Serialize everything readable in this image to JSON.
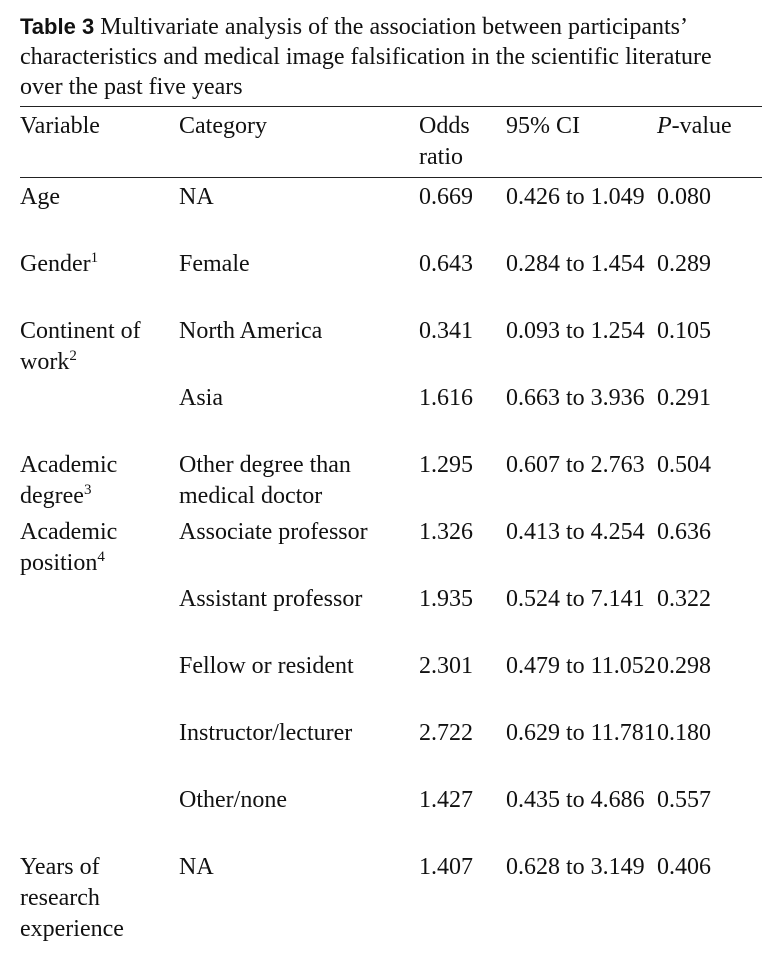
{
  "caption": {
    "label": "Table 3",
    "text": "Multivariate analysis of the association between participants’ characteristics and medical image falsification in the scientific literature over the past five years"
  },
  "table": {
    "header": [
      "Variable",
      "Category",
      "Odds ratio",
      "95% CI",
      {
        "italic": "P",
        "text": "-value"
      }
    ],
    "rows": [
      [
        {
          "text": "Age"
        },
        "NA",
        "0.669",
        "0.426 to 1.049",
        "0.080"
      ],
      [
        {
          "text": "Gender",
          "sup": "1"
        },
        "Female",
        "0.643",
        "0.284 to 1.454",
        "0.289"
      ],
      [
        {
          "text": "Continent of work",
          "sup": "2"
        },
        "North America",
        "0.341",
        "0.093 to 1.254",
        "0.105"
      ],
      [
        {
          "text": ""
        },
        "Asia",
        "1.616",
        "0.663 to 3.936",
        "0.291"
      ],
      [
        {
          "text": "Academic degree",
          "sup": "3"
        },
        "Other degree than medical doctor",
        "1.295",
        "0.607 to 2.763",
        "0.504"
      ],
      [
        {
          "text": "Academic position",
          "sup": "4"
        },
        "Associate professor",
        "1.326",
        "0.413 to 4.254",
        "0.636"
      ],
      [
        {
          "text": ""
        },
        "Assistant professor",
        "1.935",
        "0.524 to 7.141",
        "0.322"
      ],
      [
        {
          "text": ""
        },
        "Fellow or resident",
        "2.301",
        "0.479 to 11.052",
        "0.298"
      ],
      [
        {
          "text": ""
        },
        "Instructor/lecturer",
        "2.722",
        "0.629 to 11.781",
        "0.180"
      ],
      [
        {
          "text": ""
        },
        "Other/none",
        "1.427",
        "0.435 to 4.686",
        "0.557"
      ],
      [
        {
          "text": "Years of research experience"
        },
        "NA",
        "1.407",
        "0.628 to 3.149",
        "0.406"
      ]
    ]
  }
}
